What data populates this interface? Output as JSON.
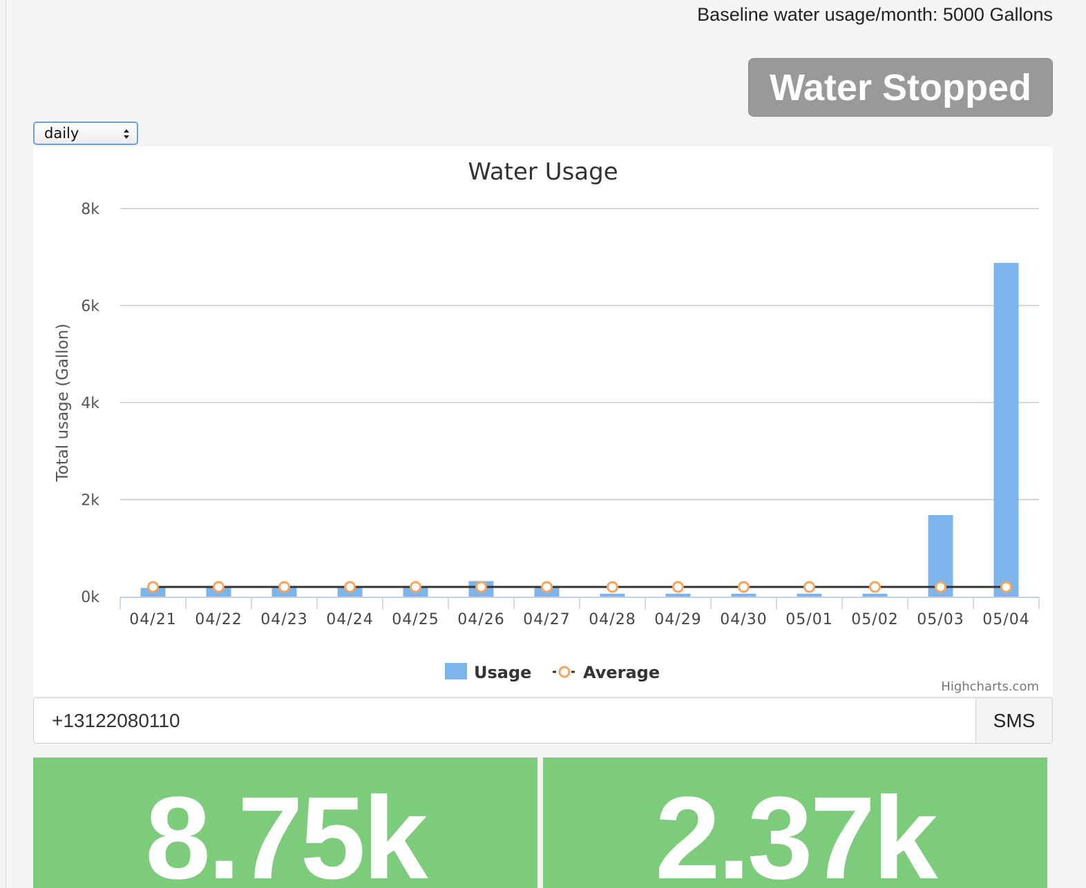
{
  "header": {
    "baseline_text": "Baseline water usage/month: 5000 Gallons",
    "status_button": "Water Stopped"
  },
  "period_select": {
    "value": "daily"
  },
  "chart_data": {
    "type": "bar",
    "title": "Water Usage",
    "ylabel": "Total usage (Gallon)",
    "xlabel": "",
    "ylim": [
      0,
      8000
    ],
    "yticks": [
      0,
      2000,
      4000,
      6000,
      8000
    ],
    "ytick_labels": [
      "0k",
      "2k",
      "4k",
      "6k",
      "8k"
    ],
    "categories": [
      "04/21",
      "04/22",
      "04/23",
      "04/24",
      "04/25",
      "04/26",
      "04/27",
      "04/28",
      "04/29",
      "04/30",
      "05/01",
      "05/02",
      "05/03",
      "05/04"
    ],
    "series": [
      {
        "name": "Usage",
        "type": "bar",
        "color": "#7cb5ec",
        "values": [
          180,
          200,
          190,
          200,
          200,
          320,
          200,
          60,
          60,
          60,
          60,
          60,
          1680,
          6880
        ]
      },
      {
        "name": "Average",
        "type": "line",
        "color": "#f7a35c",
        "line_color": "#333333",
        "values": [
          200,
          200,
          200,
          200,
          200,
          200,
          200,
          200,
          200,
          200,
          200,
          200,
          200,
          200
        ]
      }
    ],
    "legend_position": "bottom-center",
    "grid": true,
    "credits": "Highcharts.com"
  },
  "phone": {
    "value": "+13122080110",
    "button_label": "SMS"
  },
  "stats": [
    {
      "value": "8.75k"
    },
    {
      "value": "2.37k"
    }
  ]
}
